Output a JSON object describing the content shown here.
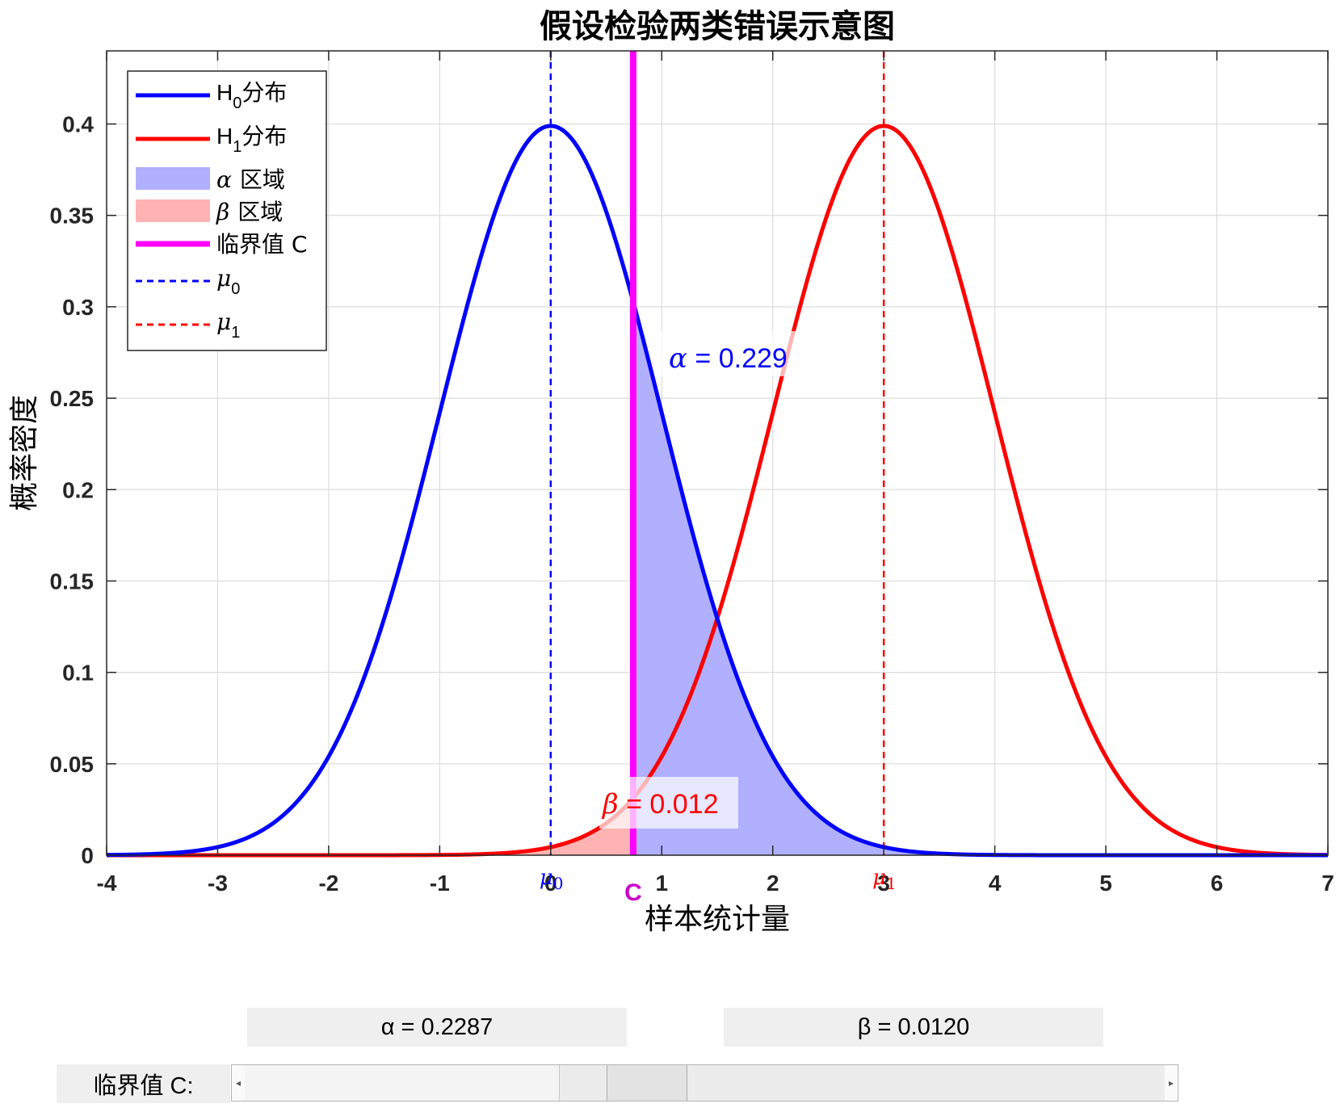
{
  "chart_data": {
    "type": "line",
    "title": "假设检验两类错误示意图",
    "xlabel": "样本统计量",
    "ylabel": "概率密度",
    "xlim": [
      -4,
      7
    ],
    "ylim": [
      0,
      0.44
    ],
    "xticks": [
      "-4",
      "-3",
      "-2",
      "-1",
      "0",
      "1",
      "2",
      "3",
      "4",
      "5",
      "6",
      "7"
    ],
    "yticks": [
      "0",
      "0.05",
      "0.1",
      "0.15",
      "0.2",
      "0.25",
      "0.3",
      "0.35",
      "0.4"
    ],
    "grid": true,
    "legend_position": "top-left",
    "mu0": 0,
    "mu1": 3,
    "sigma": 1,
    "critical_value": 0.743,
    "series": [
      {
        "name": "H0",
        "name_sub": "0",
        "name_suffix": "分布",
        "color": "#0000ff",
        "mean": 0,
        "sd": 1
      },
      {
        "name": "H1",
        "name_sub": "1",
        "name_suffix": "分布",
        "color": "#ff0000",
        "mean": 3,
        "sd": 1
      }
    ],
    "legend": {
      "alpha_region": "区域",
      "beta_region": "区域",
      "critical": "临界值 C",
      "mu0_sub": "0",
      "mu1_sub": "1"
    },
    "annotations": {
      "alpha_text": " = 0.229",
      "beta_text": " = 0.012",
      "mu0_marker": "μ",
      "mu0_marker_sub": "0",
      "mu1_marker": "μ",
      "mu1_marker_sub": "1",
      "c_marker": "C"
    },
    "colors": {
      "h0": "#0000ff",
      "h1": "#ff0000",
      "alpha_fill": "#b0b0ff",
      "beta_fill": "#ffb3b3",
      "critical": "#ff00ff",
      "c_label": "#cc00cc"
    }
  },
  "controls": {
    "alpha_display": "α = 0.2287",
    "beta_display": "β = 0.0120",
    "slider_label": "临界值 C:",
    "slider_value": 0.743,
    "slider_min": -4,
    "slider_max": 7
  }
}
